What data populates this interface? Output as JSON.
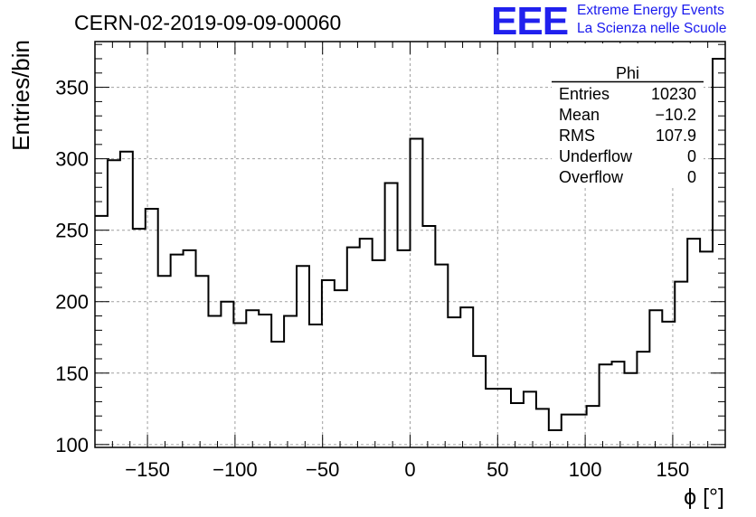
{
  "chart_data": {
    "type": "histogram",
    "title": "CERN-02-2019-09-09-00060",
    "xlabel": "ϕ [°]",
    "ylabel": "Entries/bin",
    "xlim": [
      -180,
      180
    ],
    "ylim": [
      98,
      382
    ],
    "grid": true,
    "x_ticks": [
      -150,
      -100,
      -50,
      0,
      50,
      100,
      150
    ],
    "x_tick_labels": [
      "−150",
      "−100",
      "−50",
      "0",
      "50",
      "100",
      "150"
    ],
    "y_ticks": [
      100,
      150,
      200,
      250,
      300,
      350
    ],
    "y_tick_labels": [
      "100",
      "150",
      "200",
      "250",
      "300",
      "350"
    ],
    "bin_width": 7.2,
    "bin_edges_start": -180,
    "values": [
      260,
      299,
      305,
      251,
      265,
      218,
      233,
      236,
      218,
      190,
      200,
      185,
      194,
      191,
      172,
      190,
      225,
      184,
      215,
      208,
      238,
      244,
      229,
      283,
      236,
      314,
      253,
      226,
      189,
      196,
      162,
      139,
      139,
      129,
      137,
      125,
      110,
      121,
      121,
      127,
      156,
      158,
      150,
      165,
      194,
      186,
      214,
      244,
      235,
      370
    ],
    "stats_box": {
      "title": "Phi",
      "rows": [
        {
          "label": "Entries",
          "value": "10230"
        },
        {
          "label": "Mean",
          "value": "−10.2"
        },
        {
          "label": "RMS",
          "value": "107.9"
        },
        {
          "label": "Underflow",
          "value": "0"
        },
        {
          "label": "Overflow",
          "value": "0"
        }
      ]
    }
  },
  "logo": {
    "mark": "EEE",
    "line1": "Extreme Energy Events",
    "line2": "La Scienza nelle Scuole"
  },
  "colors": {
    "line": "#000000",
    "grid": "#a0a0a0",
    "logo": "#2020ee"
  }
}
